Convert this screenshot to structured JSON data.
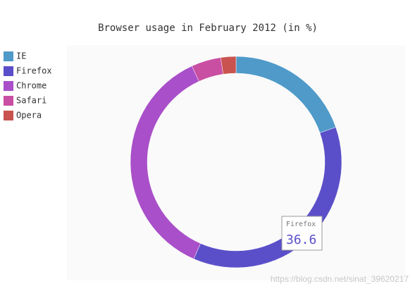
{
  "chart_data": {
    "type": "donut",
    "title": "Browser usage in February 2012 (in %)",
    "series": [
      {
        "name": "IE",
        "color": "#4f9ac9",
        "values": [
          19.5
        ]
      },
      {
        "name": "Firefox",
        "color": "#5b4fc9",
        "values": [
          36.6
        ]
      },
      {
        "name": "Chrome",
        "color": "#a94fc9",
        "values": [
          36.3
        ]
      },
      {
        "name": "Safari",
        "color": "#c94fa3",
        "values": [
          4.5
        ]
      },
      {
        "name": "Opera",
        "color": "#c9544f",
        "values": [
          2.3
        ]
      }
    ],
    "legend": "left"
  },
  "watermark": "https://blog.csdn.net/sinat_39620217"
}
